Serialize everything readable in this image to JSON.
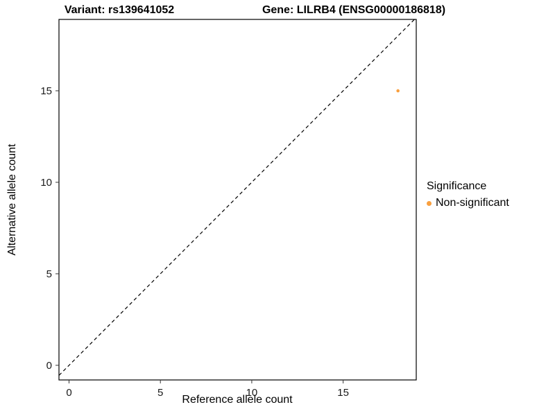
{
  "titles": {
    "variant": "Variant: rs139641052",
    "gene": "Gene: LILRB4 (ENSG00000186818)"
  },
  "chart_data": {
    "type": "scatter",
    "title": "Variant: rs139641052 — Gene: LILRB4 (ENSG00000186818)",
    "xlabel": "Reference allele count",
    "ylabel": "Alternative allele count",
    "xlim": [
      -0.55,
      19.0
    ],
    "ylim": [
      -0.8,
      18.9
    ],
    "xticks": [
      0,
      5,
      10,
      15
    ],
    "yticks": [
      0,
      5,
      10,
      15
    ],
    "grid": false,
    "points": [
      {
        "x": 18,
        "y": 15,
        "series": "Non-significant",
        "color": "#F9A03F"
      }
    ],
    "reference_line": {
      "type": "identity",
      "slope": 1,
      "intercept": 0,
      "style": "dashed",
      "color": "#000000"
    },
    "legend": {
      "title": "Significance",
      "position": "right",
      "entries": [
        {
          "label": "Non-significant",
          "color": "#F9A03F"
        }
      ]
    },
    "colors": {
      "point": "#F9A03F",
      "axis_text": "#1a1a1a",
      "panel_border": "#000000",
      "background": "#FFFFFF"
    }
  }
}
